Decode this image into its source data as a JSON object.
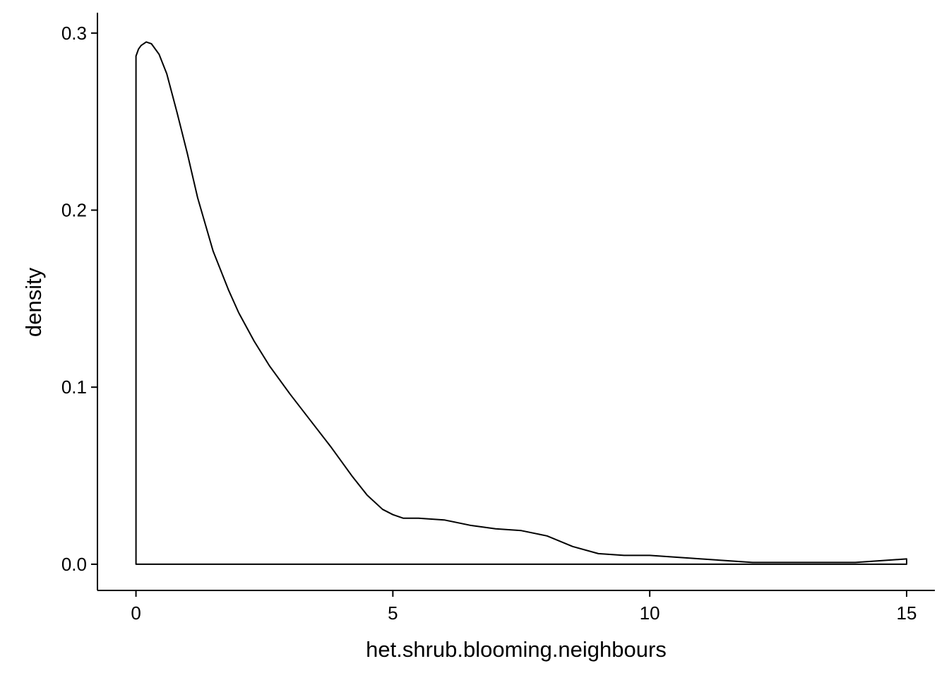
{
  "chart_data": {
    "type": "area",
    "title": "",
    "xlabel": "het.shrub.blooming.neighbours",
    "ylabel": "density",
    "xlim": [
      -0.75,
      15.55
    ],
    "ylim": [
      -0.0148,
      0.3115
    ],
    "x_ticks": [
      0,
      5,
      10,
      15
    ],
    "x_tick_labels": [
      "0",
      "5",
      "10",
      "15"
    ],
    "y_ticks": [
      0.0,
      0.1,
      0.2,
      0.3
    ],
    "y_tick_labels": [
      "0.0",
      "0.1",
      "0.2",
      "0.3"
    ],
    "grid": false,
    "legend": "none",
    "series": [
      {
        "x": [
          0,
          0.05,
          0.1,
          0.2,
          0.3,
          0.45,
          0.6,
          0.8,
          1.0,
          1.2,
          1.5,
          1.8,
          2.0,
          2.3,
          2.6,
          3.0,
          3.4,
          3.8,
          4.2,
          4.5,
          4.8,
          5.0,
          5.2,
          5.5,
          6.0,
          6.5,
          7.0,
          7.5,
          8.0,
          8.5,
          9.0,
          9.5,
          10.0,
          10.5,
          11.0,
          11.5,
          12.0,
          12.5,
          13.0,
          13.5,
          14.0,
          14.5,
          15.0
        ],
        "y": [
          0.287,
          0.291,
          0.293,
          0.295,
          0.294,
          0.288,
          0.277,
          0.255,
          0.232,
          0.207,
          0.177,
          0.155,
          0.142,
          0.126,
          0.112,
          0.096,
          0.081,
          0.066,
          0.05,
          0.039,
          0.031,
          0.028,
          0.026,
          0.026,
          0.025,
          0.022,
          0.02,
          0.019,
          0.016,
          0.01,
          0.006,
          0.005,
          0.005,
          0.004,
          0.003,
          0.002,
          0.001,
          0.001,
          0.001,
          0.001,
          0.001,
          0.002,
          0.003
        ]
      }
    ],
    "colors": {
      "fill": "#ffffff",
      "line": "#000000",
      "axis": "#000000",
      "background": "#ffffff"
    }
  }
}
